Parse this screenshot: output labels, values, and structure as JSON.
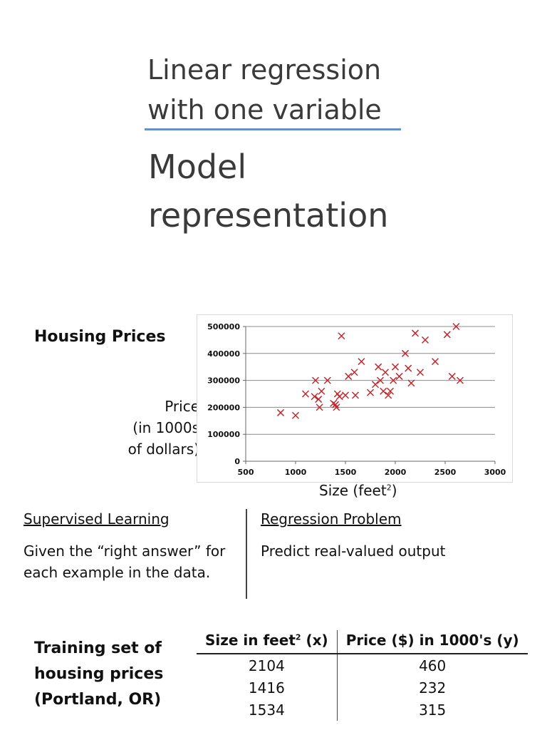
{
  "slide": {
    "heading_line1": "Linear regression",
    "heading_line2": "with one variable",
    "title_line1": "Model",
    "title_line2": "representation"
  },
  "housing": {
    "title": "Housing Prices",
    "ylabel_line1": "Price",
    "ylabel_line2": "(in 1000s",
    "ylabel_line3": "of dollars)",
    "xlabel_prefix": "Size (feet",
    "xlabel_sup": "2",
    "xlabel_suffix": ")"
  },
  "chart_data": {
    "type": "scatter",
    "marker": "x",
    "color": "#c0282d",
    "xlim": [
      500,
      3000
    ],
    "ylim": [
      0,
      500000
    ],
    "xticks": [
      500,
      1000,
      1500,
      2000,
      2500,
      3000
    ],
    "yticks": [
      0,
      100000,
      200000,
      300000,
      400000,
      500000
    ],
    "grid": "horizontal",
    "points": [
      [
        850,
        180000
      ],
      [
        1000,
        170000
      ],
      [
        1100,
        250000
      ],
      [
        1190,
        240000
      ],
      [
        1200,
        300000
      ],
      [
        1230,
        230000
      ],
      [
        1240,
        200000
      ],
      [
        1260,
        260000
      ],
      [
        1320,
        300000
      ],
      [
        1380,
        215000
      ],
      [
        1400,
        210000
      ],
      [
        1410,
        200000
      ],
      [
        1420,
        250000
      ],
      [
        1440,
        240000
      ],
      [
        1460,
        465000
      ],
      [
        1500,
        245000
      ],
      [
        1530,
        315000
      ],
      [
        1590,
        330000
      ],
      [
        1600,
        245000
      ],
      [
        1660,
        370000
      ],
      [
        1750,
        255000
      ],
      [
        1800,
        285000
      ],
      [
        1830,
        350000
      ],
      [
        1850,
        300000
      ],
      [
        1880,
        260000
      ],
      [
        1900,
        330000
      ],
      [
        1930,
        245000
      ],
      [
        1950,
        260000
      ],
      [
        1980,
        300000
      ],
      [
        2000,
        350000
      ],
      [
        2040,
        315000
      ],
      [
        2100,
        400000
      ],
      [
        2130,
        345000
      ],
      [
        2160,
        290000
      ],
      [
        2200,
        475000
      ],
      [
        2250,
        330000
      ],
      [
        2300,
        450000
      ],
      [
        2400,
        370000
      ],
      [
        2520,
        470000
      ],
      [
        2570,
        315000
      ],
      [
        2610,
        500000
      ],
      [
        2650,
        300000
      ]
    ]
  },
  "supervised": {
    "heading": "Supervised Learning",
    "line1": "Given the “right answer” for",
    "line2": "each example in the data."
  },
  "regression": {
    "heading": "Regression Problem",
    "line1": "Predict real-valued output"
  },
  "training": {
    "title_line1": "Training set of",
    "title_line2": "housing prices",
    "title_line3": "(Portland, OR)",
    "col1_prefix": "Size in feet",
    "col1_sup": "2",
    "col1_suffix": " (x)",
    "col2": "Price ($) in 1000's (y)",
    "rows": [
      [
        "2104",
        "460"
      ],
      [
        "1416",
        "232"
      ],
      [
        "1534",
        "315"
      ]
    ]
  }
}
